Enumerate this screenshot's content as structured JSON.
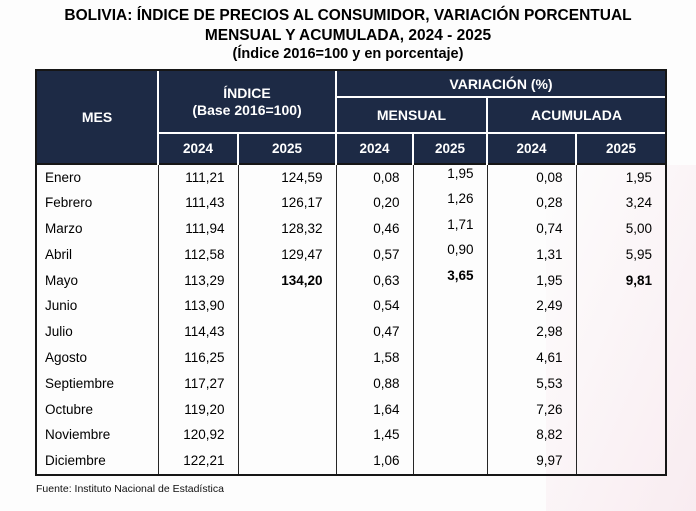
{
  "title": {
    "line1": "BOLIVIA: ÍNDICE DE PRECIOS AL CONSUMIDOR, VARIACIÓN PORCENTUAL",
    "line2": "MENSUAL Y ACUMULADA, 2024 - 2025",
    "line3": "(Índice 2016=100 y en porcentaje)"
  },
  "table": {
    "headers": {
      "mes": "MES",
      "indice_line1": "ÍNDICE",
      "indice_line2": "(Base 2016=100)",
      "variacion": "VARIACIÓN (%)",
      "mensual": "MENSUAL",
      "acumulada": "ACUMULADA",
      "y2024": "2024",
      "y2025": "2025"
    },
    "rows": [
      {
        "mes": "Enero",
        "i24": "111,21",
        "i25": "124,59",
        "m24": "0,08",
        "m25": "1,95",
        "a24": "0,08",
        "a25": "1,95"
      },
      {
        "mes": "Febrero",
        "i24": "111,43",
        "i25": "126,17",
        "m24": "0,20",
        "m25": "1,26",
        "a24": "0,28",
        "a25": "3,24"
      },
      {
        "mes": "Marzo",
        "i24": "111,94",
        "i25": "128,32",
        "m24": "0,46",
        "m25": "1,71",
        "a24": "0,74",
        "a25": "5,00"
      },
      {
        "mes": "Abril",
        "i24": "112,58",
        "i25": "129,47",
        "m24": "0,57",
        "m25": "0,90",
        "a24": "1,31",
        "a25": "5,95"
      },
      {
        "mes": "Mayo",
        "i24": "113,29",
        "i25": "134,20",
        "m24": "0,63",
        "m25": "3,65",
        "a24": "1,95",
        "a25": "9,81"
      },
      {
        "mes": "Junio",
        "i24": "113,90",
        "i25": "",
        "m24": "0,54",
        "m25": "",
        "a24": "2,49",
        "a25": ""
      },
      {
        "mes": "Julio",
        "i24": "114,43",
        "i25": "",
        "m24": "0,47",
        "m25": "",
        "a24": "2,98",
        "a25": ""
      },
      {
        "mes": "Agosto",
        "i24": "116,25",
        "i25": "",
        "m24": "1,58",
        "m25": "",
        "a24": "4,61",
        "a25": ""
      },
      {
        "mes": "Septiembre",
        "i24": "117,27",
        "i25": "",
        "m24": "0,88",
        "m25": "",
        "a24": "5,53",
        "a25": ""
      },
      {
        "mes": "Octubre",
        "i24": "119,20",
        "i25": "",
        "m24": "1,64",
        "m25": "",
        "a24": "7,26",
        "a25": ""
      },
      {
        "mes": "Noviembre",
        "i24": "120,92",
        "i25": "",
        "m24": "1,45",
        "m25": "",
        "a24": "8,82",
        "a25": ""
      },
      {
        "mes": "Diciembre",
        "i24": "122,21",
        "i25": "",
        "m24": "1,06",
        "m25": "",
        "a24": "9,97",
        "a25": ""
      }
    ]
  },
  "footer": {
    "source": "Fuente: Instituto Nacional de Estadística"
  },
  "colors": {
    "header_bg": "#1d2a45",
    "header_text": "#ffffff",
    "table_border": "#161616",
    "cell_border": "#262626",
    "body_bg": "#fdfdfd",
    "right_tint": "#f8eaef"
  }
}
